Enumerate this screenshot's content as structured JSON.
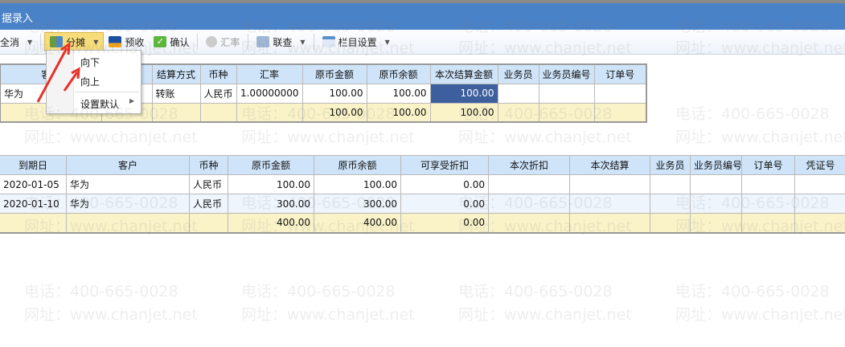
{
  "window": {
    "title": "据录入"
  },
  "toolbar": {
    "items": [
      {
        "label": "全消",
        "icon": "deselect-icon"
      },
      {
        "label": "分摊",
        "icon": "allocate-icon"
      },
      {
        "label": "预收",
        "icon": "card-icon"
      },
      {
        "label": "确认",
        "icon": "check-icon"
      },
      {
        "label": "汇率",
        "icon": "percent-icon"
      },
      {
        "label": "联查",
        "icon": "query-icon"
      },
      {
        "label": "栏目设置",
        "icon": "columns-icon"
      }
    ]
  },
  "dropdown": {
    "items": [
      "向下",
      "向上",
      "设置默认"
    ]
  },
  "top_table": {
    "headers": [
      "客户",
      "",
      "结算方式",
      "币种",
      "汇率",
      "原币金额",
      "原币余额",
      "本次结算金额",
      "业务员",
      "业务员编号",
      "订单号"
    ],
    "rows": [
      [
        "华为",
        "",
        "转账",
        "人民币",
        "1.00000000",
        "100.00",
        "100.00",
        "100.00",
        "",
        "",
        ""
      ]
    ],
    "total": [
      "",
      "",
      "",
      "",
      "",
      "100.00",
      "100.00",
      "100.00",
      "",
      "",
      ""
    ]
  },
  "bottom_table": {
    "headers": [
      "到期日",
      "客户",
      "币种",
      "原币金额",
      "原币余额",
      "可享受折扣",
      "本次折扣",
      "本次结算",
      "业务员",
      "业务员编号",
      "订单号",
      "凭证号"
    ],
    "rows": [
      [
        "2020-01-05",
        "华为",
        "人民币",
        "100.00",
        "100.00",
        "0.00",
        "",
        "",
        "",
        "",
        "",
        ""
      ],
      [
        "2020-01-10",
        "华为",
        "人民币",
        "300.00",
        "300.00",
        "0.00",
        "",
        "",
        "",
        "",
        "",
        ""
      ]
    ],
    "total": [
      "",
      "",
      "",
      "400.00",
      "400.00",
      "0.00",
      "",
      "",
      "",
      "",
      "",
      ""
    ]
  },
  "watermark": {
    "phone": "电话：400-665-0028",
    "site": "网址：www.chanjet.net"
  },
  "colors": {
    "titlebar": "#4a82c8",
    "header": "#cfe4f9",
    "total": "#faf3c8",
    "selected": "#3d5f9e",
    "arrow": "#e8322a"
  }
}
